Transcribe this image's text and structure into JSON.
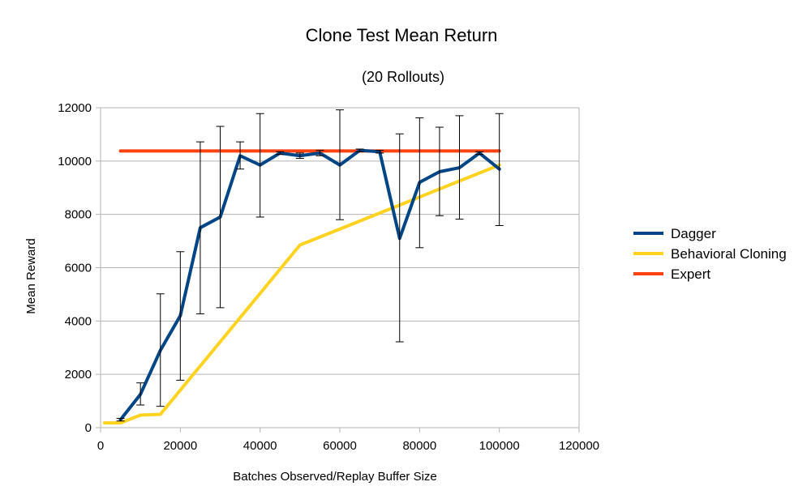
{
  "chart_data": {
    "type": "line",
    "title": "Clone Test Mean Return",
    "subtitle": "(20 Rollouts)",
    "xlabel": "Batches Observed/Replay Buffer Size",
    "ylabel": "Mean Reward",
    "xlim": [
      0,
      120000
    ],
    "ylim": [
      0,
      12000
    ],
    "x_ticks": [
      0,
      20000,
      40000,
      60000,
      80000,
      100000,
      120000
    ],
    "y_ticks": [
      0,
      2000,
      4000,
      6000,
      8000,
      10000,
      12000
    ],
    "x_tick_labels": [
      "0",
      "20000",
      "40000",
      "60000",
      "80000",
      "100000",
      "120000"
    ],
    "y_tick_labels": [
      "0",
      "2000",
      "4000",
      "6000",
      "8000",
      "10000",
      "12000"
    ],
    "grid": "horizontal",
    "legend_position": "right",
    "series": [
      {
        "name": "Dagger",
        "color": "#004586",
        "x": [
          5000,
          10000,
          15000,
          20000,
          25000,
          30000,
          35000,
          40000,
          45000,
          50000,
          55000,
          60000,
          65000,
          70000,
          75000,
          80000,
          85000,
          90000,
          95000,
          100000
        ],
        "y": [
          300,
          1250,
          2900,
          4200,
          7500,
          7900,
          10200,
          9850,
          10300,
          10200,
          10300,
          9850,
          10400,
          10350,
          7100,
          9200,
          9600,
          9750,
          10300,
          9700
        ],
        "err_low": [
          250,
          850,
          800,
          1780,
          4270,
          4500,
          9700,
          7900,
          10250,
          10100,
          10200,
          7800,
          10350,
          10300,
          3220,
          6750,
          7950,
          7820,
          10250,
          7580
        ],
        "err_high": [
          350,
          1680,
          5020,
          6600,
          10720,
          11300,
          10720,
          11780,
          10350,
          10300,
          10400,
          11920,
          10450,
          10400,
          11020,
          11620,
          11270,
          11700,
          10350,
          11780
        ]
      },
      {
        "name": "Behavioral Cloning",
        "color": "#ffd320",
        "x": [
          1000,
          5000,
          10000,
          15000,
          50000,
          100000
        ],
        "y": [
          180,
          180,
          470,
          500,
          6850,
          9850
        ]
      },
      {
        "name": "Expert",
        "color": "#ff420e",
        "x": [
          5000,
          100000
        ],
        "y": [
          10380,
          10380
        ]
      }
    ]
  }
}
